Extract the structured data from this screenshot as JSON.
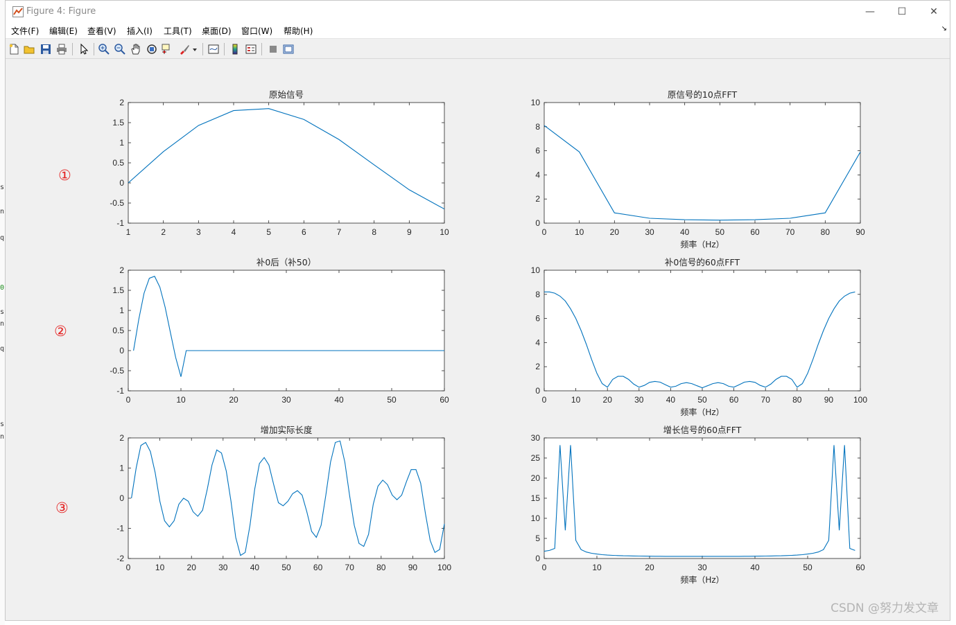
{
  "window": {
    "title": "Figure 4: Figure",
    "controls": {
      "minimize": "—",
      "maximize": "☐",
      "close": "✕"
    }
  },
  "menu": [
    "文件(F)",
    "编辑(E)",
    "查看(V)",
    "插入(I)",
    "工具(T)",
    "桌面(D)",
    "窗口(W)",
    "帮助(H)"
  ],
  "menu_overflow": "↘",
  "toolbar_icons": [
    "new-figure-icon",
    "open-file-icon",
    "save-icon",
    "print-icon",
    "arrow-select-icon",
    "zoom-in-icon",
    "zoom-out-icon",
    "pan-hand-icon",
    "rotate-3d-icon",
    "data-cursor-icon",
    "brush-icon",
    "brush-dropdown-icon",
    "link-plot-icon",
    "colorbar-icon",
    "legend-icon",
    "hide-plot-tools-icon",
    "show-plot-tools-icon"
  ],
  "markers": [
    "①",
    "②",
    "③"
  ],
  "watermark": "CSDN @努力发文章",
  "colors": {
    "line": "#0072bd",
    "marker": "#e52222",
    "axes_bg": "#ffffff",
    "figure_bg": "#f0f0f0"
  },
  "chart_data": [
    {
      "type": "line",
      "title": "原始信号",
      "xlabel": "",
      "xlim": [
        1,
        10
      ],
      "ylim": [
        -1,
        2
      ],
      "xticks": [
        1,
        2,
        3,
        4,
        5,
        6,
        7,
        8,
        9,
        10
      ],
      "yticks": [
        -1,
        -0.5,
        0,
        0.5,
        1,
        1.5,
        2
      ],
      "x": [
        1,
        2,
        3,
        4,
        5,
        6,
        7,
        8,
        9,
        10
      ],
      "y": [
        0,
        0.78,
        1.43,
        1.8,
        1.85,
        1.58,
        1.08,
        0.45,
        -0.17,
        -0.65
      ]
    },
    {
      "type": "line",
      "title": "原信号的10点FFT",
      "xlabel": "频率（Hz）",
      "xlim": [
        0,
        90
      ],
      "ylim": [
        0,
        10
      ],
      "xticks": [
        0,
        10,
        20,
        30,
        40,
        50,
        60,
        70,
        80,
        90
      ],
      "yticks": [
        0,
        2,
        4,
        6,
        8,
        10
      ],
      "x": [
        0,
        10,
        20,
        30,
        40,
        50,
        60,
        70,
        80,
        90
      ],
      "y": [
        8.1,
        5.9,
        0.85,
        0.4,
        0.28,
        0.25,
        0.28,
        0.4,
        0.85,
        5.9
      ]
    },
    {
      "type": "line",
      "title": "补0后（补50）",
      "xlabel": "",
      "xlim": [
        0,
        60
      ],
      "ylim": [
        -1,
        2
      ],
      "xticks": [
        0,
        10,
        20,
        30,
        40,
        50,
        60
      ],
      "yticks": [
        -1,
        -0.5,
        0,
        0.5,
        1,
        1.5,
        2
      ],
      "x": [
        1,
        2,
        3,
        4,
        5,
        6,
        7,
        8,
        9,
        10,
        11,
        60
      ],
      "y": [
        0,
        0.78,
        1.43,
        1.8,
        1.85,
        1.58,
        1.08,
        0.45,
        -0.17,
        -0.65,
        0,
        0
      ]
    },
    {
      "type": "line",
      "title": "补0信号的60点FFT",
      "xlabel": "频率（Hz）",
      "xlim": [
        0,
        100
      ],
      "ylim": [
        0,
        10
      ],
      "xticks": [
        0,
        10,
        20,
        30,
        40,
        50,
        60,
        70,
        80,
        90,
        100
      ],
      "yticks": [
        0,
        2,
        4,
        6,
        8,
        10
      ],
      "x": [
        0,
        1.67,
        3.33,
        5,
        6.67,
        8.33,
        10,
        11.67,
        13.33,
        15,
        16.67,
        18.33,
        20,
        21.67,
        23.33,
        25,
        26.67,
        28.33,
        30,
        31.67,
        33.33,
        35,
        36.67,
        38.33,
        40,
        41.67,
        43.33,
        45,
        46.67,
        48.33,
        50,
        51.67,
        53.33,
        55,
        56.67,
        58.33,
        60,
        61.67,
        63.33,
        65,
        66.67,
        68.33,
        70,
        71.67,
        73.33,
        75,
        76.67,
        78.33,
        80,
        81.67,
        83.33,
        85,
        86.67,
        88.33,
        90,
        91.67,
        93.33,
        95,
        96.67,
        98.33
      ],
      "y": [
        8.2,
        8.2,
        8.1,
        7.85,
        7.45,
        6.8,
        6.0,
        5.0,
        3.85,
        2.6,
        1.45,
        0.6,
        0.3,
        0.95,
        1.2,
        1.2,
        0.95,
        0.55,
        0.3,
        0.45,
        0.7,
        0.78,
        0.72,
        0.5,
        0.3,
        0.38,
        0.6,
        0.68,
        0.6,
        0.42,
        0.25,
        0.42,
        0.6,
        0.68,
        0.6,
        0.38,
        0.3,
        0.5,
        0.72,
        0.78,
        0.7,
        0.45,
        0.3,
        0.55,
        0.95,
        1.2,
        1.2,
        0.95,
        0.3,
        0.6,
        1.45,
        2.6,
        3.85,
        5.0,
        6.0,
        6.8,
        7.45,
        7.85,
        8.1,
        8.2
      ]
    },
    {
      "type": "line",
      "title": "增加实际长度",
      "xlabel": "",
      "xlim": [
        0,
        100
      ],
      "ylim": [
        -2,
        2
      ],
      "xticks": [
        0,
        10,
        20,
        30,
        40,
        50,
        60,
        70,
        80,
        90,
        100
      ],
      "yticks": [
        -2,
        -1,
        0,
        1,
        2
      ],
      "x": [
        1,
        2.5,
        4,
        5.5,
        7,
        8.5,
        10,
        11.5,
        13,
        14.5,
        16,
        17.5,
        19,
        20.5,
        22,
        23.5,
        25,
        26.5,
        28,
        29.5,
        31,
        32.5,
        34,
        35.5,
        37,
        38.5,
        40,
        41.5,
        43,
        44.5,
        46,
        47.5,
        49,
        50.5,
        52,
        53.5,
        55,
        56.5,
        58,
        59.5,
        61,
        62.5,
        64,
        65.5,
        67,
        68.5,
        70,
        71.5,
        73,
        74.5,
        76,
        77.5,
        79,
        80.5,
        82,
        83.5,
        85,
        86.5,
        88,
        89.5,
        91,
        92.5,
        94,
        95.5,
        97,
        98.5,
        100
      ],
      "y": [
        0,
        1.0,
        1.75,
        1.85,
        1.55,
        0.85,
        -0.1,
        -0.75,
        -0.95,
        -0.75,
        -0.2,
        0.0,
        -0.1,
        -0.45,
        -0.6,
        -0.4,
        0.3,
        1.1,
        1.6,
        1.5,
        0.9,
        -0.1,
        -1.3,
        -1.9,
        -1.8,
        -0.9,
        0.3,
        1.15,
        1.35,
        1.1,
        0.45,
        -0.15,
        -0.25,
        -0.1,
        0.15,
        0.25,
        0.1,
        -0.45,
        -1.1,
        -1.3,
        -0.9,
        0.1,
        1.2,
        1.85,
        1.9,
        1.2,
        0.1,
        -0.9,
        -1.5,
        -1.6,
        -1.2,
        -0.2,
        0.4,
        0.6,
        0.45,
        0.1,
        -0.05,
        0.1,
        0.55,
        0.95,
        0.95,
        0.5,
        -0.5,
        -1.4,
        -1.8,
        -1.7,
        -0.85
      ]
    },
    {
      "type": "line",
      "title": "增长信号的60点FFT",
      "xlabel": "频率（Hz）",
      "xlim": [
        0,
        60
      ],
      "ylim": [
        0,
        30
      ],
      "xticks": [
        0,
        10,
        20,
        30,
        40,
        50,
        60
      ],
      "yticks": [
        0,
        5,
        10,
        15,
        20,
        25,
        30
      ],
      "x": [
        0,
        1,
        2,
        3,
        4,
        5,
        6,
        7,
        8,
        9,
        10,
        11,
        12,
        13,
        14,
        15,
        16,
        17,
        18,
        19,
        20,
        21,
        22,
        23,
        24,
        25,
        26,
        27,
        28,
        29,
        30,
        31,
        32,
        33,
        34,
        35,
        36,
        37,
        38,
        39,
        40,
        41,
        42,
        43,
        44,
        45,
        46,
        47,
        48,
        49,
        50,
        51,
        52,
        53,
        54,
        55,
        56,
        57,
        58,
        59
      ],
      "y": [
        1.8,
        2.0,
        2.5,
        28.2,
        7.0,
        28.2,
        4.5,
        2.2,
        1.6,
        1.3,
        1.1,
        0.95,
        0.85,
        0.78,
        0.72,
        0.68,
        0.65,
        0.62,
        0.6,
        0.58,
        0.57,
        0.56,
        0.55,
        0.54,
        0.54,
        0.53,
        0.53,
        0.53,
        0.53,
        0.53,
        0.53,
        0.53,
        0.53,
        0.53,
        0.53,
        0.53,
        0.54,
        0.54,
        0.55,
        0.56,
        0.57,
        0.58,
        0.6,
        0.62,
        0.65,
        0.68,
        0.72,
        0.78,
        0.85,
        0.95,
        1.1,
        1.3,
        1.6,
        2.2,
        4.5,
        28.2,
        7.0,
        28.2,
        2.5,
        2.0
      ]
    }
  ]
}
